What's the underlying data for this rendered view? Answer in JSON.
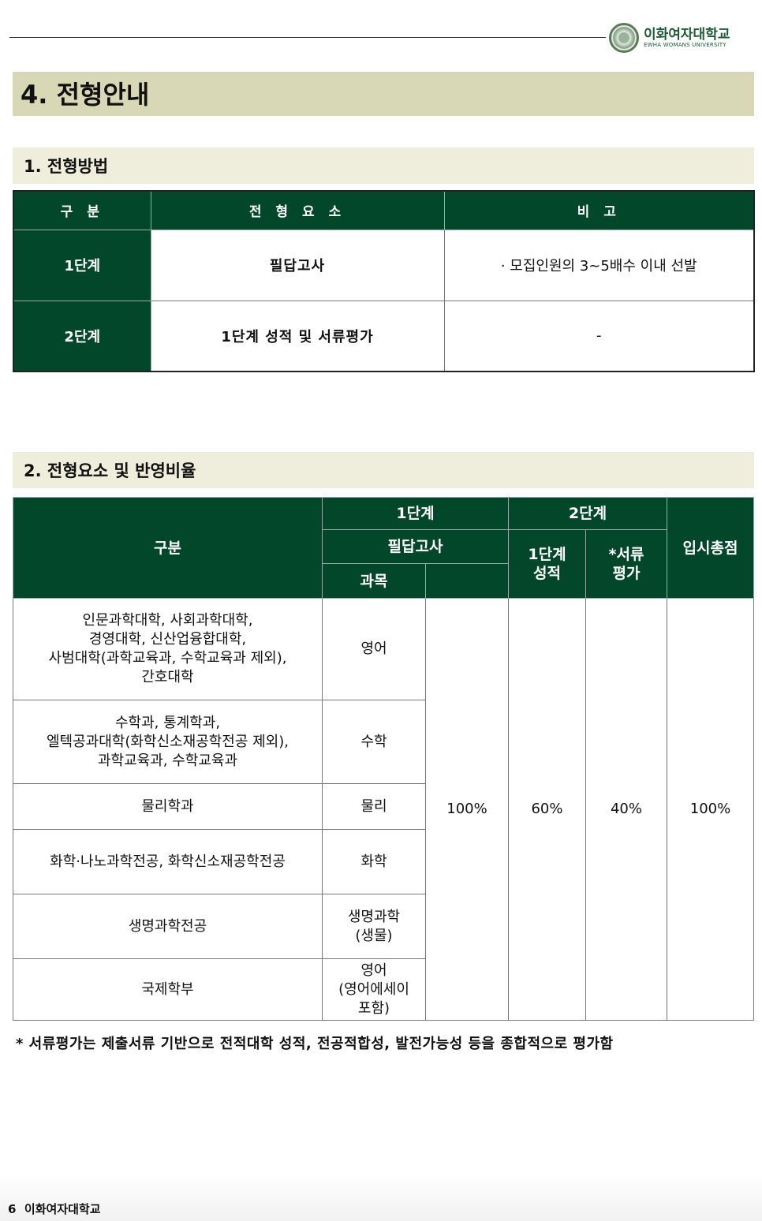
{
  "header": {
    "logo_korean": "이화여자대학교",
    "logo_english": "EWHA WOMANS UNIVERSITY"
  },
  "title": "4. 전형안내",
  "section1": {
    "title": "1. 전형방법",
    "headers": [
      "구 분",
      "전 형 요 소",
      "비 고"
    ],
    "rows": [
      {
        "stage": "1단계",
        "element": "필답고사",
        "note": "· 모집인원의 3~5배수 이내 선발"
      },
      {
        "stage": "2단계",
        "element": "1단계 성적 및 서류평가",
        "note": "-"
      }
    ]
  },
  "section2": {
    "title": "2. 전형요소 및 반영비율",
    "headers": {
      "category": "구분",
      "stage1": "1단계",
      "written": "필답고사",
      "subject": "과목",
      "stage2": "2단계",
      "stage1_score": "1단계 성적",
      "documents": "*서류 평가",
      "total": "입시총점"
    },
    "rows": [
      {
        "category": "인문과학대학, 사회과학대학,\n경영대학, 신산업융합대학,\n사범대학(과학교육과, 수학교육과 제외),\n간호대학",
        "subject": "영어"
      },
      {
        "category": "수학과, 통계학과,\n엘텍공과대학(화학신소재공학전공 제외),\n과학교육과, 수학교육과",
        "subject": "수학"
      },
      {
        "category": "물리학과",
        "subject": "물리"
      },
      {
        "category": "화학·나노과학전공, 화학신소재공학전공",
        "subject": "화학"
      },
      {
        "category": "생명과학전공",
        "subject": "생명과학\n(생물)"
      },
      {
        "category": "국제학부",
        "subject": "영어\n(영어에세이\n포함)"
      }
    ],
    "values": {
      "written": "100%",
      "stage1_score": "60%",
      "documents": "40%",
      "total": "100%"
    }
  },
  "footnote": "* 서류평가는 제출서류 기반으로 전적대학 성적, 전공적합성, 발전가능성 등을 종합적으로 평가함",
  "footer": {
    "page": "6",
    "name": "이화여자대학교"
  },
  "colors": {
    "header_green": "#03472b",
    "title_bar": "#d8d8b6",
    "section_bar": "#efeedd"
  }
}
